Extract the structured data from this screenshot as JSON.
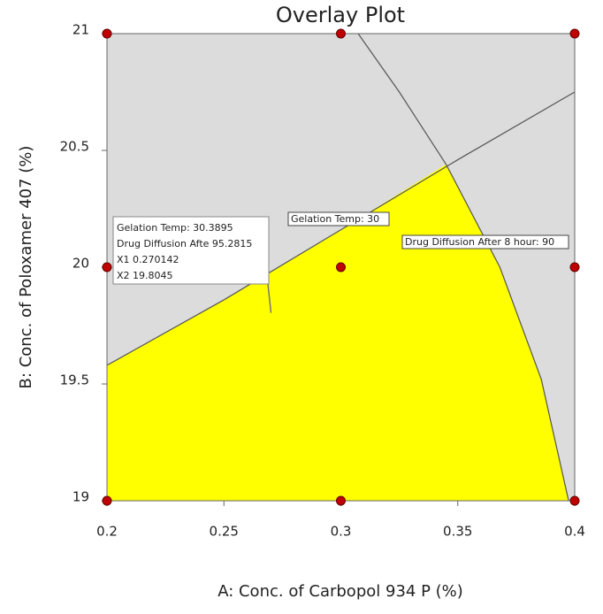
{
  "chart_data": {
    "type": "contour",
    "title": "Overlay Plot",
    "x_label": "A: Conc. of Carbopol 934 P (%)",
    "y_label": "B: Conc. of Poloxamer 407 (%)",
    "xlim": [
      0.2,
      0.4
    ],
    "ylim": [
      19,
      21
    ],
    "xticks": [
      0.2,
      0.25,
      0.3,
      0.35,
      0.4
    ],
    "yticks": [
      19,
      19.5,
      20,
      20.5,
      21
    ],
    "background": "#dcdcdc",
    "region": {
      "color": "#ffff00",
      "x": [
        0.2,
        0.2,
        0.25,
        0.3,
        0.345,
        0.368,
        0.3857,
        0.3974
      ],
      "y": [
        19,
        19.58,
        19.86,
        20.16,
        20.44,
        20.0,
        19.52,
        19.0
      ]
    },
    "contours": [
      {
        "label": "Gelation Temp: 30",
        "color": "#555555",
        "x": [
          0.2,
          0.25,
          0.3,
          0.35,
          0.4
        ],
        "y": [
          19.58,
          19.86,
          20.16,
          20.46,
          20.75
        ]
      },
      {
        "label": "Drug Diffusion After 8 hour: 90",
        "color": "#555555",
        "x": [
          0.3074,
          0.325,
          0.345,
          0.368,
          0.3857,
          0.3974
        ],
        "y": [
          21,
          20.75,
          20.44,
          20.0,
          19.52,
          19.0
        ]
      }
    ],
    "points": {
      "color": "#c00000",
      "x": [
        0.2,
        0.3,
        0.4,
        0.2,
        0.3,
        0.4,
        0.2,
        0.3,
        0.4
      ],
      "y": [
        21,
        21,
        21,
        20,
        20,
        20,
        19,
        19,
        19
      ]
    },
    "flag": {
      "x": 0.270142,
      "y": 19.8045,
      "lines": [
        "Gelation Temp:   30.3895",
        "Drug Diffusion Afte  95.2815",
        "X1  0.270142",
        "X2  19.8045"
      ]
    }
  }
}
